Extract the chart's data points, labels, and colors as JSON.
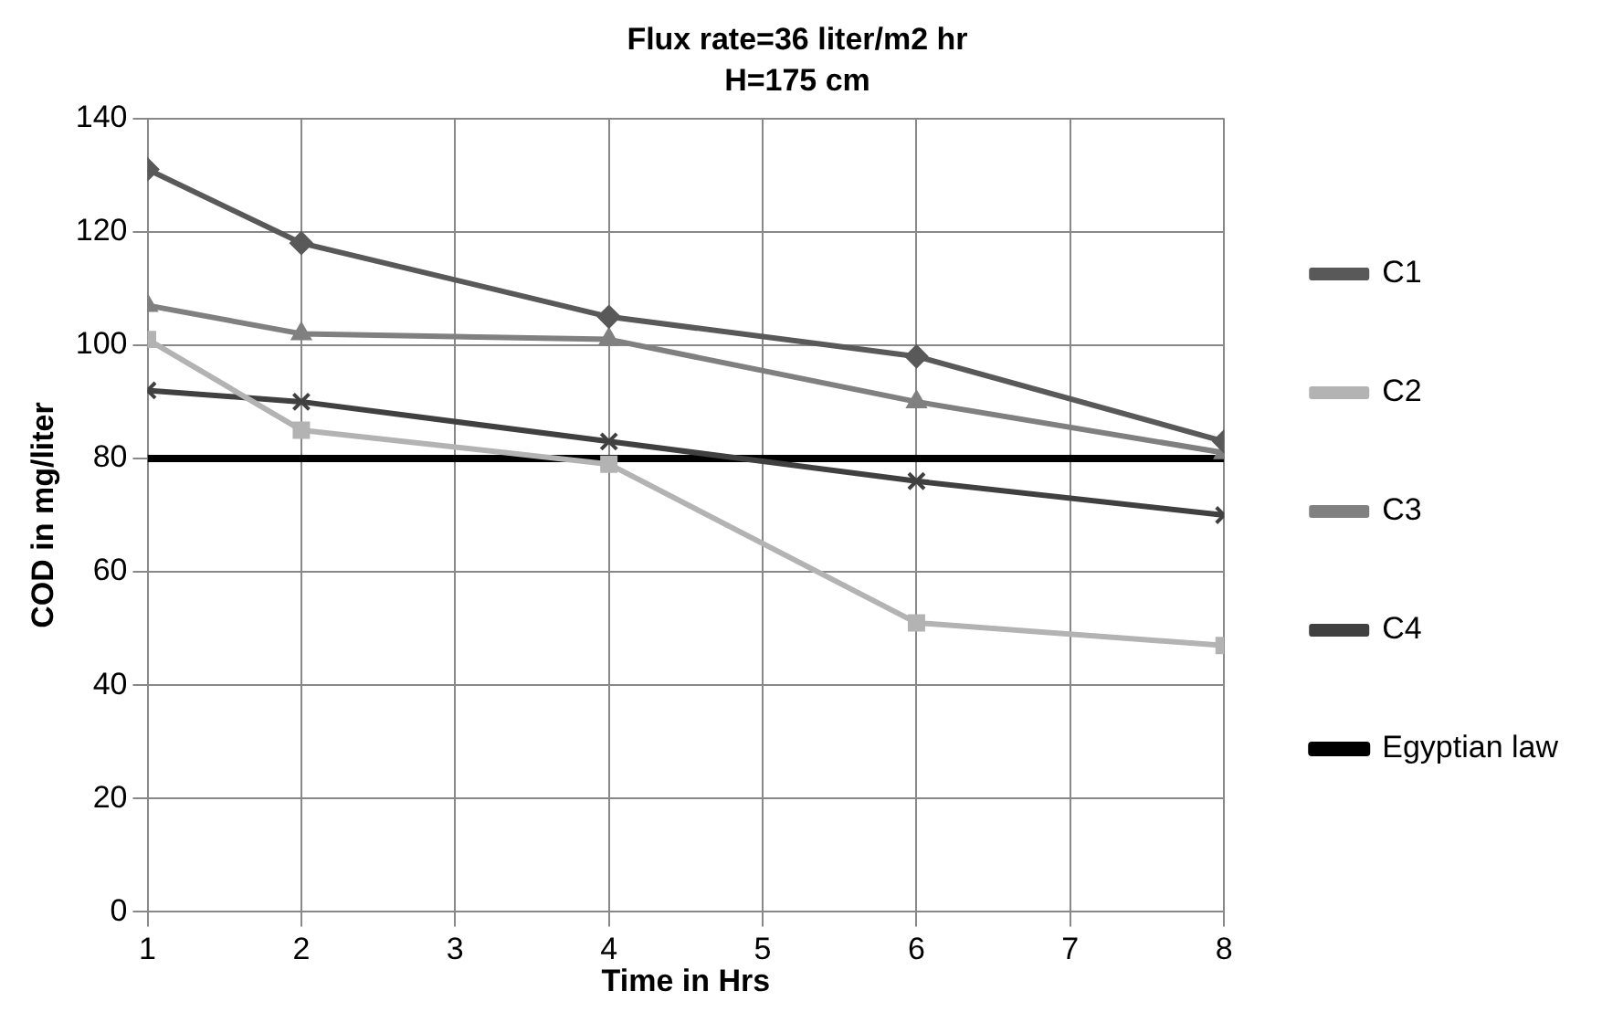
{
  "chart_data": {
    "type": "line",
    "title": "Flux rate=36 liter/m2 hr",
    "subtitle": "H=175 cm",
    "xlabel": "Time in Hrs",
    "ylabel": "COD in mg/liter",
    "x": [
      1,
      2,
      4,
      6,
      8
    ],
    "xlim": [
      1,
      8
    ],
    "xticks": [
      1,
      2,
      3,
      4,
      5,
      6,
      7,
      8
    ],
    "ylim": [
      0,
      140
    ],
    "yticks": [
      0,
      20,
      40,
      60,
      80,
      100,
      120,
      140
    ],
    "grid": true,
    "legend": "right",
    "line_style": "solid",
    "series": [
      {
        "name": "C1",
        "color": "#595959",
        "marker": "diamond",
        "values": [
          131,
          118,
          105,
          98,
          83
        ]
      },
      {
        "name": "C2",
        "color": "#b3b3b3",
        "marker": "square",
        "values": [
          101,
          85,
          79,
          51,
          47
        ]
      },
      {
        "name": "C3",
        "color": "#808080",
        "marker": "triangle",
        "values": [
          107,
          102,
          101,
          90,
          81
        ]
      },
      {
        "name": "C4",
        "color": "#404040",
        "marker": "cross",
        "values": [
          92,
          90,
          83,
          76,
          70
        ]
      },
      {
        "name": "Egyptian law",
        "color": "#000000",
        "marker": "none",
        "x": [
          1,
          8
        ],
        "values": [
          80,
          80
        ]
      }
    ]
  }
}
